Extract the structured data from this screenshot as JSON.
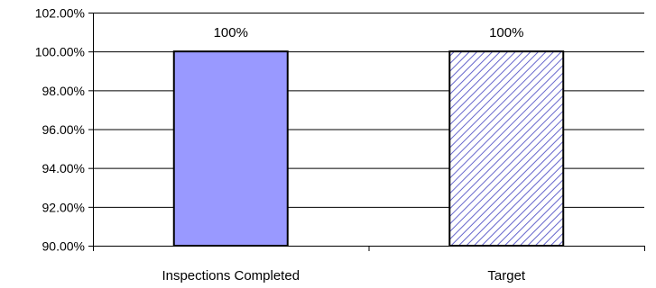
{
  "chart_data": {
    "type": "bar",
    "title": "",
    "xlabel": "",
    "ylabel": "",
    "categories": [
      "Inspections Completed",
      "Target"
    ],
    "values": [
      100,
      100
    ],
    "data_labels": [
      "100%",
      "100%"
    ],
    "ylim": [
      90,
      102
    ],
    "yticks": [
      90,
      92,
      94,
      96,
      98,
      100,
      102
    ],
    "ytick_labels": [
      "90.00%",
      "92.00%",
      "94.00%",
      "96.00%",
      "98.00%",
      "100.00%",
      "102.00%"
    ],
    "grid": true,
    "legend": "none",
    "bar_styles": [
      {
        "fill": "#9999ff",
        "pattern": "solid"
      },
      {
        "fill": "#9999ff",
        "pattern": "diagonal-hatch"
      }
    ],
    "colors": {
      "bar": "#9999ff",
      "hatch": "#6666cc",
      "outline": "#000000",
      "grid": "#000000"
    }
  }
}
